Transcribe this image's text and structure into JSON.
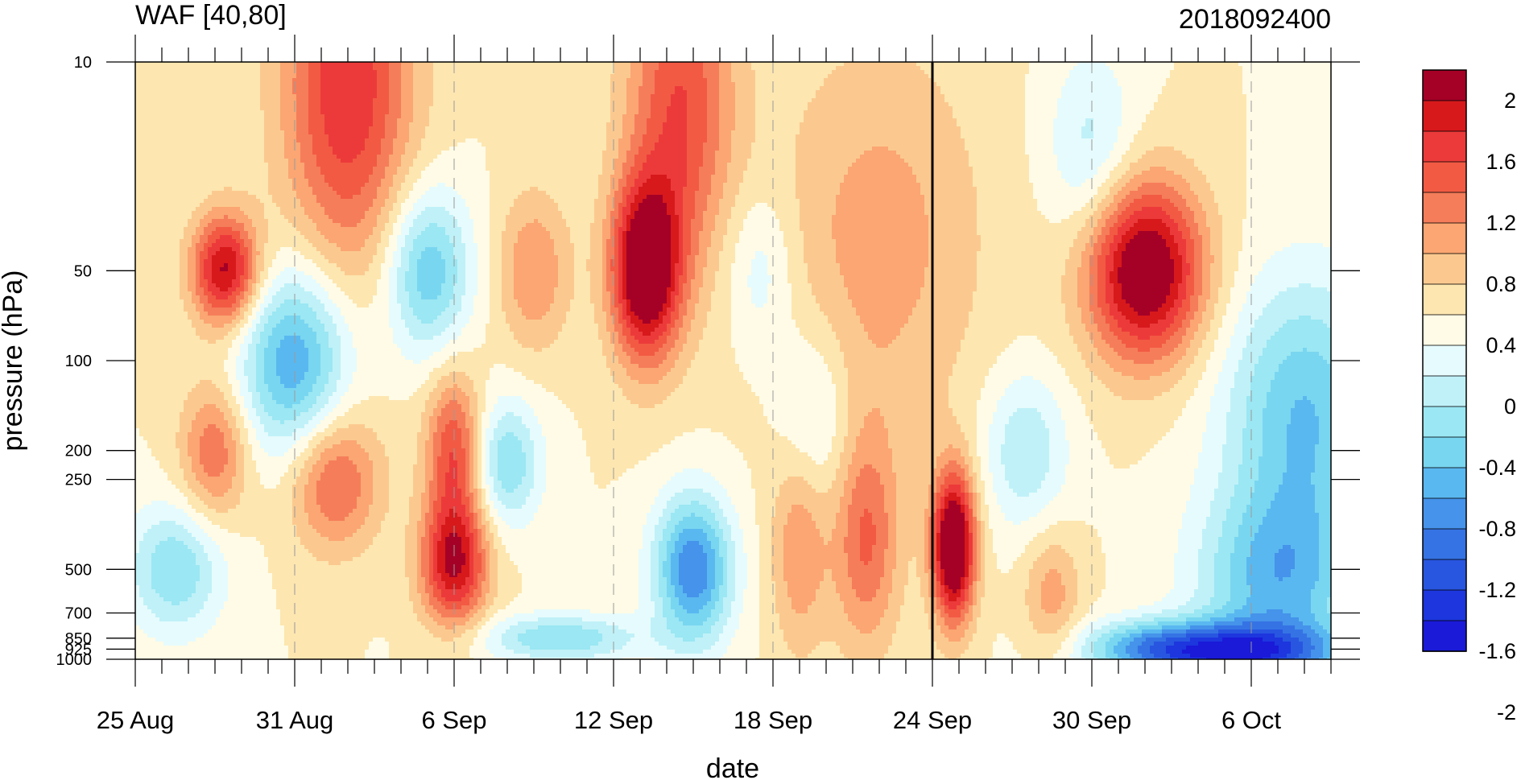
{
  "chart_data": {
    "type": "heatmap",
    "title": "WAF [40,80]",
    "run_label": "2018092400",
    "xlabel": "date",
    "ylabel": "pressure (hPa)",
    "x_ticks": [
      {
        "label": "25 Aug",
        "day": 0
      },
      {
        "label": "31 Aug",
        "day": 6
      },
      {
        "label": "6 Sep",
        "day": 12
      },
      {
        "label": "12 Sep",
        "day": 18
      },
      {
        "label": "18 Sep",
        "day": 24
      },
      {
        "label": "24 Sep",
        "day": 30
      },
      {
        "label": "30 Sep",
        "day": 36
      },
      {
        "label": "6 Oct",
        "day": 42
      }
    ],
    "x_range": [
      "25 Aug",
      "10 Oct"
    ],
    "x_day_range": [
      0,
      45
    ],
    "y_ticks": [
      "10",
      "50",
      "100",
      "200",
      "250",
      "500",
      "700",
      "850",
      "925",
      "1000"
    ],
    "y_range": [
      1000,
      10
    ],
    "y_scale": "log",
    "marker_line_date": "24 Sep",
    "colorbar": {
      "labels": [
        "2",
        "1.6",
        "1.2",
        "0.8",
        "0.4",
        "0",
        "-0.4",
        "-0.8",
        "-1.2",
        "-1.6",
        "-2"
      ],
      "colors": [
        "#a50026",
        "#d7191c",
        "#ec3a3a",
        "#f25a44",
        "#f57d5a",
        "#fba673",
        "#fbc98f",
        "#fde6b0",
        "#fffbe6",
        "#e6fbfd",
        "#c0f1f8",
        "#9be7f3",
        "#79d6f0",
        "#5ab8f0",
        "#4593ea",
        "#3573e4",
        "#2856e0",
        "#1d36de",
        "#1a1ad8"
      ]
    },
    "grid": "dashed-vertical"
  }
}
